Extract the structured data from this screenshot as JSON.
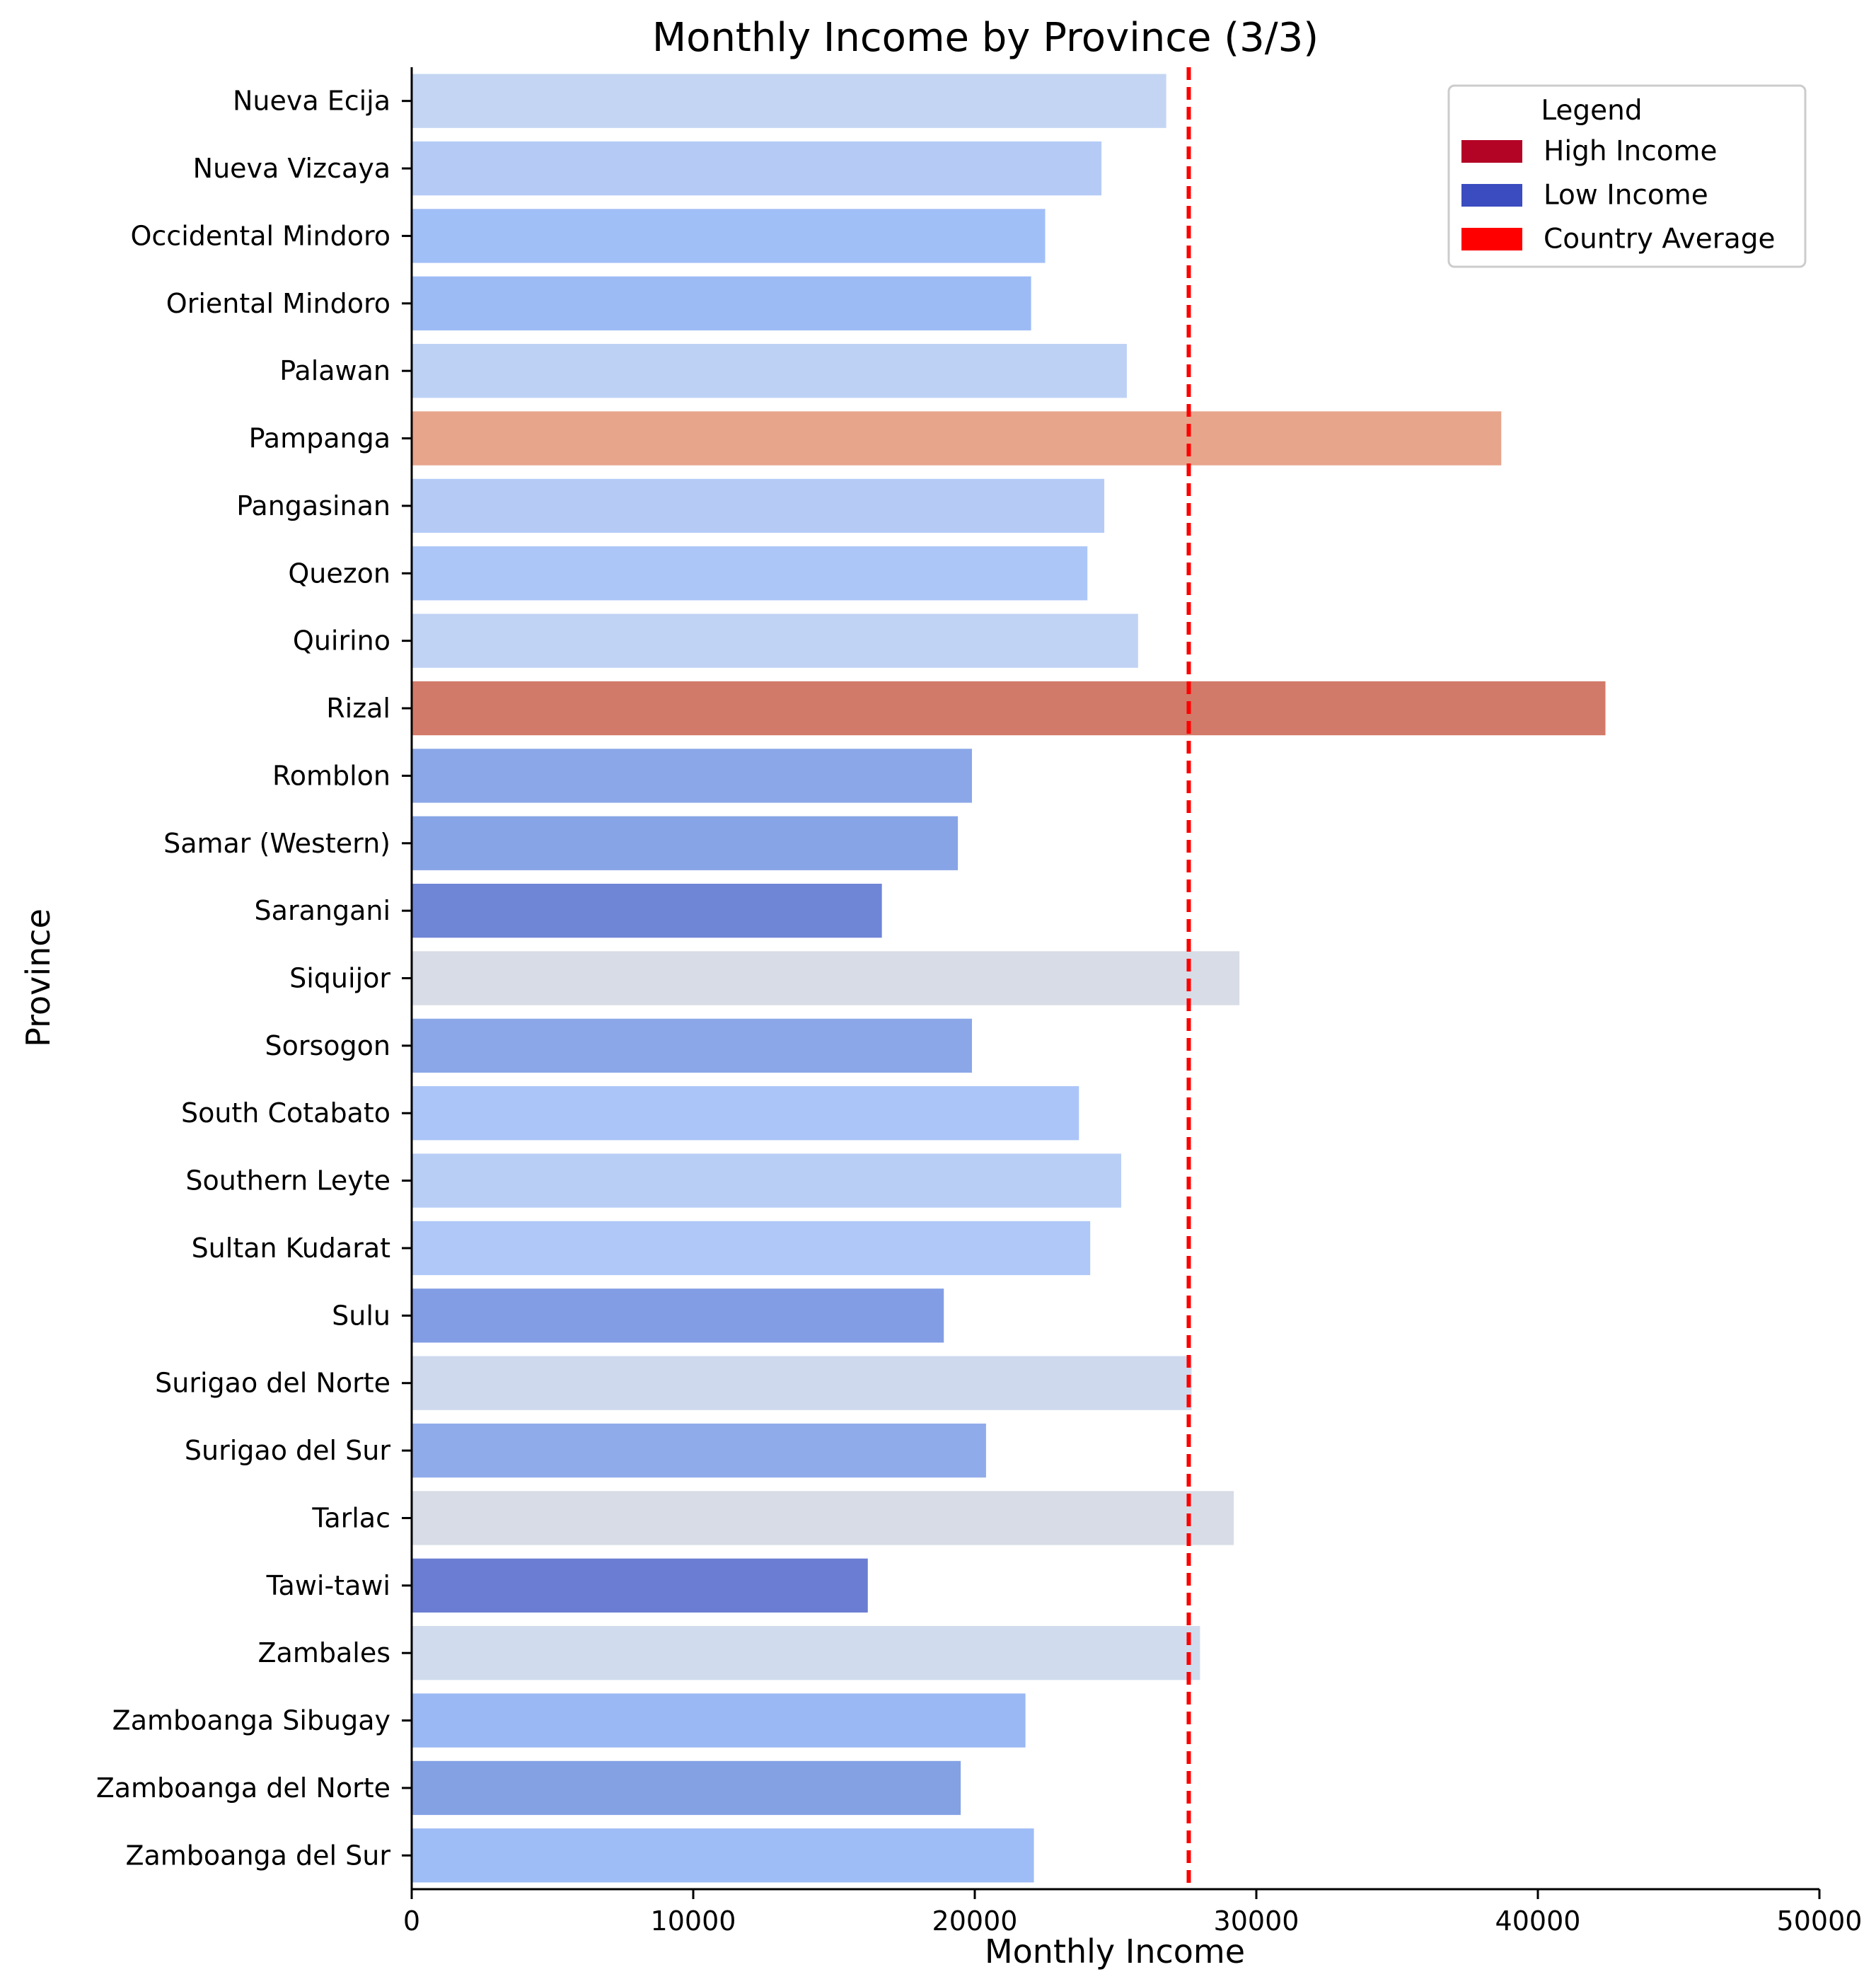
{
  "chart_data": {
    "type": "bar",
    "orientation": "horizontal",
    "title": "Monthly Income by Province (3/3)",
    "xlabel": "Monthly Income",
    "ylabel": "Province",
    "xlim": [
      0,
      50000
    ],
    "xticks": [
      0,
      10000,
      20000,
      30000,
      40000,
      50000
    ],
    "grid": false,
    "reference_line": {
      "label": "Country Average",
      "value": 27600,
      "color": "#ff0000",
      "style": "dashed"
    },
    "legend": {
      "title": "Legend",
      "position": "top-right",
      "items": [
        {
          "label": "High Income",
          "color": "#b40426"
        },
        {
          "label": "Low Income",
          "color": "#3b4cc0"
        },
        {
          "label": "Country Average",
          "color": "#ff0000"
        }
      ]
    },
    "categories": [
      "Nueva Ecija",
      "Nueva Vizcaya",
      "Occidental Mindoro",
      "Oriental Mindoro",
      "Palawan",
      "Pampanga",
      "Pangasinan",
      "Quezon",
      "Quirino",
      "Rizal",
      "Romblon",
      "Samar (Western)",
      "Sarangani",
      "Siquijor",
      "Sorsogon",
      "South Cotabato",
      "Southern Leyte",
      "Sultan Kudarat",
      "Sulu",
      "Surigao del Norte",
      "Surigao del Sur",
      "Tarlac",
      "Tawi-tawi",
      "Zambales",
      "Zamboanga Sibugay",
      "Zamboanga del Norte",
      "Zamboanga del Sur"
    ],
    "values": [
      26800,
      24500,
      22500,
      22000,
      25400,
      38700,
      24600,
      24000,
      25800,
      42400,
      19900,
      19400,
      16700,
      29400,
      19900,
      23700,
      25200,
      24100,
      18900,
      27700,
      20400,
      29200,
      16200,
      28000,
      21800,
      19500,
      22100
    ],
    "bar_colors": [
      "#c4d5f3",
      "#b5cbf6",
      "#a1bff7",
      "#9cbbf5",
      "#bdd1f5",
      "#e7a58c",
      "#b5cbf6",
      "#acc6f7",
      "#c1d3f4",
      "#d27a69",
      "#8ba7e7",
      "#87a4e6",
      "#6f85d6",
      "#d8dce6",
      "#8ba7e7",
      "#abc5f8",
      "#b9cef5",
      "#afc8f7",
      "#829de4",
      "#cfd9ed",
      "#90abea",
      "#d8dce6",
      "#6b7dd2",
      "#d0dbed",
      "#9ab8f3",
      "#84a1e4",
      "#9ebcf5"
    ]
  }
}
